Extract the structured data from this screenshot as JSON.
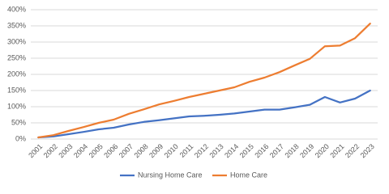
{
  "chart_data": {
    "type": "line",
    "categories": [
      "2001",
      "2002",
      "2003",
      "2004",
      "2005",
      "2006",
      "2007",
      "2008",
      "2009",
      "2010",
      "2011",
      "2012",
      "2013",
      "2014",
      "2015",
      "2016",
      "2017",
      "2018",
      "2019",
      "2020",
      "2021",
      "2022",
      "2023"
    ],
    "series": [
      {
        "name": "Nursing Home Care",
        "color": "#4472c4",
        "values": [
          5,
          8,
          15,
          22,
          30,
          35,
          45,
          53,
          58,
          64,
          70,
          72,
          75,
          79,
          85,
          91,
          91,
          98,
          106,
          130,
          113,
          125,
          150
        ]
      },
      {
        "name": "Home Care",
        "color": "#ed7d31",
        "values": [
          5,
          12,
          25,
          37,
          50,
          60,
          78,
          92,
          107,
          118,
          130,
          140,
          150,
          160,
          177,
          190,
          207,
          228,
          248,
          287,
          289,
          312,
          357
        ]
      }
    ],
    "ylim": [
      0,
      400
    ],
    "yticks": [
      {
        "value": 0,
        "label": "0%"
      },
      {
        "value": 50,
        "label": "50%"
      },
      {
        "value": 100,
        "label": "100%"
      },
      {
        "value": 150,
        "label": "150%"
      },
      {
        "value": 200,
        "label": "200%"
      },
      {
        "value": 250,
        "label": "250%"
      },
      {
        "value": 300,
        "label": "300%"
      },
      {
        "value": 350,
        "label": "350%"
      },
      {
        "value": 400,
        "label": "400%"
      }
    ],
    "grid": true,
    "legend": "bottom"
  }
}
